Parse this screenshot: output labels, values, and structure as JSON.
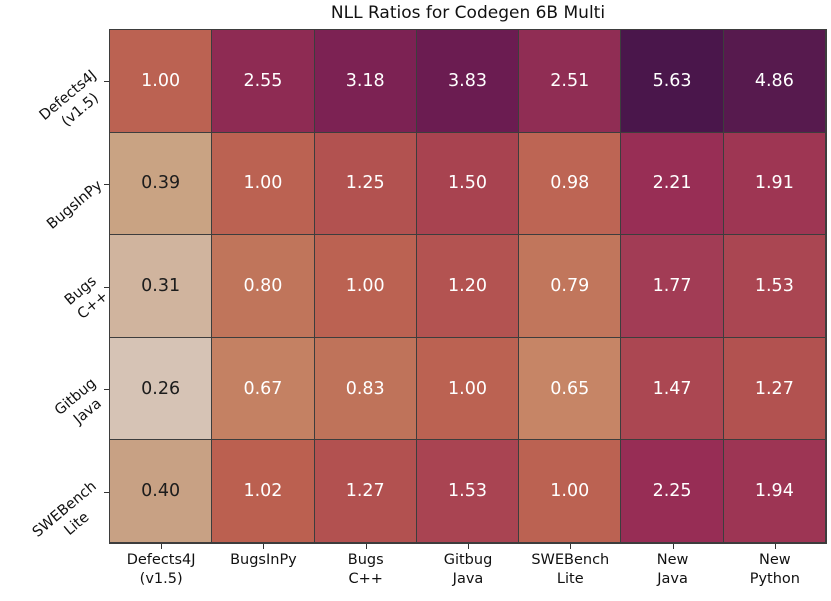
{
  "chart_data": {
    "type": "heatmap",
    "title": "NLL Ratios for Codegen 6B Multi",
    "row_labels": [
      [
        "Defects4J",
        "(v1.5)"
      ],
      [
        "BugsInPy"
      ],
      [
        "Bugs",
        "C++"
      ],
      [
        "Gitbug",
        "Java"
      ],
      [
        "SWEBench",
        "Lite"
      ]
    ],
    "col_labels": [
      [
        "Defects4J",
        "(v1.5)"
      ],
      [
        "BugsInPy"
      ],
      [
        "Bugs",
        "C++"
      ],
      [
        "Gitbug",
        "Java"
      ],
      [
        "SWEBench",
        "Lite"
      ],
      [
        "New",
        "Java"
      ],
      [
        "New",
        "Python"
      ]
    ],
    "values": [
      [
        1.0,
        2.55,
        3.18,
        3.83,
        2.51,
        5.63,
        4.86
      ],
      [
        0.39,
        1.0,
        1.25,
        1.5,
        0.98,
        2.21,
        1.91
      ],
      [
        0.31,
        0.8,
        1.0,
        1.2,
        0.79,
        1.77,
        1.53
      ],
      [
        0.26,
        0.67,
        0.83,
        1.0,
        0.65,
        1.47,
        1.27
      ],
      [
        0.4,
        1.02,
        1.27,
        1.53,
        1.0,
        2.25,
        1.94
      ]
    ],
    "decimals": 2,
    "cell_colors": [
      [
        "#bb6252",
        "#8e2b53",
        "#7c2253",
        "#6b1c51",
        "#902d54",
        "#4a164b",
        "#571a4e"
      ],
      [
        "#c9a383",
        "#bb6252",
        "#b25250",
        "#a84350",
        "#bd6554",
        "#982e55",
        "#9e3653"
      ],
      [
        "#d0b49e",
        "#c0755b",
        "#bb6252",
        "#b35351",
        "#c1765c",
        "#a23c55",
        "#aa4652"
      ],
      [
        "#d6c3b5",
        "#c48163",
        "#bf735a",
        "#bb6252",
        "#c68566",
        "#ab4752",
        "#b25250"
      ],
      [
        "#c8a184",
        "#bb6050",
        "#b25150",
        "#a94452",
        "#bb6252",
        "#972d55",
        "#9d3554"
      ]
    ],
    "text_colors": [
      [
        "#ffffff",
        "#ffffff",
        "#ffffff",
        "#ffffff",
        "#ffffff",
        "#ffffff",
        "#ffffff"
      ],
      [
        "#1c1c1c",
        "#ffffff",
        "#ffffff",
        "#ffffff",
        "#ffffff",
        "#ffffff",
        "#ffffff"
      ],
      [
        "#1c1c1c",
        "#ffffff",
        "#ffffff",
        "#ffffff",
        "#ffffff",
        "#ffffff",
        "#ffffff"
      ],
      [
        "#1c1c1c",
        "#ffffff",
        "#ffffff",
        "#ffffff",
        "#ffffff",
        "#ffffff",
        "#ffffff"
      ],
      [
        "#1c1c1c",
        "#ffffff",
        "#ffffff",
        "#ffffff",
        "#ffffff",
        "#ffffff",
        "#ffffff"
      ]
    ],
    "grid_line_color": "#3d3d3d",
    "tick_color": "#333333",
    "background": "#ffffff",
    "legend": "none",
    "y_label_rotation_deg": -40
  }
}
